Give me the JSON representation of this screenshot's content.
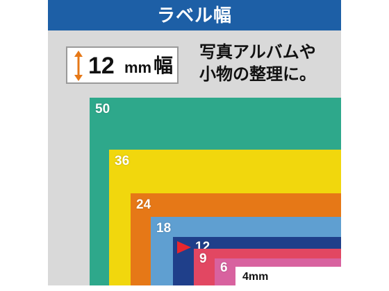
{
  "header": {
    "title": "ラベル幅"
  },
  "width_badge": {
    "value": "12",
    "unit": "mm",
    "kanji": "幅"
  },
  "description": {
    "line1": "写真アルバムや",
    "line2": "小物の整理に。"
  },
  "tapes": {
    "t50": "50",
    "t36": "36",
    "t24": "24",
    "t18": "18",
    "t12": "12",
    "t9": "9",
    "t6": "6",
    "t4": "4mm"
  },
  "colors": {
    "header": "#1d5fa6",
    "t50": "#2ea88b",
    "t36": "#f1d70d",
    "t24": "#e67817",
    "t18": "#5f9fd1",
    "t12": "#1f3f8a",
    "t9": "#e24762",
    "t6": "#d8629f",
    "t4": "#ffffff",
    "marker": "#e8272e",
    "arrow": "#e67817"
  },
  "icons": {
    "arrow": "vertical-double-arrow-icon",
    "marker": "triangle-marker-icon"
  }
}
